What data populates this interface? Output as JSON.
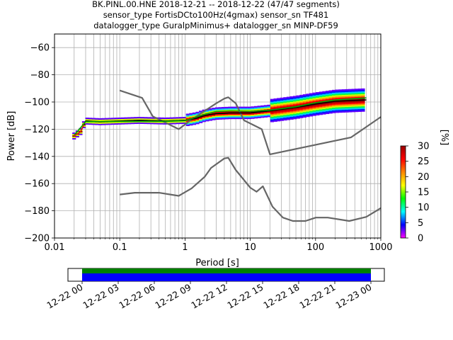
{
  "chart_data": {
    "type": "line",
    "title_lines": [
      "BK.PINL.00.HNE   2018-12-21 -- 2018-12-22  (47/47 segments)",
      "sensor_type FortisDCto100Hz(4gmax) sensor_sn TF481",
      "datalogger_type GuralpMinimus+ datalogger_sn MINP-DF59"
    ],
    "xlabel": "Period [s]",
    "ylabel": "Power [dB]",
    "xscale": "log",
    "xlim": [
      0.01,
      1000
    ],
    "ylim": [
      -200,
      -50
    ],
    "grid": true,
    "x_ticks": [
      {
        "value": 0.01,
        "label": "0.01"
      },
      {
        "value": 0.1,
        "label": "0.1"
      },
      {
        "value": 1,
        "label": "1"
      },
      {
        "value": 10,
        "label": "10"
      },
      {
        "value": 100,
        "label": "100"
      },
      {
        "value": 1000,
        "label": "1000"
      }
    ],
    "y_ticks": [
      -60,
      -80,
      -100,
      -120,
      -140,
      -160,
      -180,
      -200
    ],
    "colors": {
      "noise_model": "#666666",
      "mean": "#00aa00",
      "mode": "#000000",
      "low_period_start": "#ff2200"
    },
    "series": [
      {
        "role": "noise_model_high",
        "values": [
          [
            0.1,
            -91.5
          ],
          [
            0.22,
            -97
          ],
          [
            0.32,
            -110.5
          ],
          [
            0.8,
            -120
          ],
          [
            1.25,
            -113
          ],
          [
            3.0,
            -101
          ],
          [
            4.0,
            -97.5
          ],
          [
            4.6,
            -96.5
          ],
          [
            6.0,
            -101
          ],
          [
            8.0,
            -113.5
          ],
          [
            15.0,
            -120
          ],
          [
            20.0,
            -138.5
          ],
          [
            350.0,
            -126
          ],
          [
            1000.0,
            -111
          ]
        ]
      },
      {
        "role": "noise_model_low",
        "values": [
          [
            0.1,
            -168
          ],
          [
            0.17,
            -166.7
          ],
          [
            0.4,
            -166.7
          ],
          [
            0.8,
            -169
          ],
          [
            1.26,
            -163.5
          ],
          [
            2.0,
            -155
          ],
          [
            2.5,
            -148.5
          ],
          [
            4.0,
            -141.5
          ],
          [
            4.6,
            -141
          ],
          [
            6.0,
            -150
          ],
          [
            10.0,
            -163
          ],
          [
            12.5,
            -166
          ],
          [
            15.6,
            -162
          ],
          [
            21.9,
            -177
          ],
          [
            31.6,
            -185
          ],
          [
            45.0,
            -187.5
          ],
          [
            70.0,
            -187.5
          ],
          [
            101.0,
            -185
          ],
          [
            154.0,
            -185
          ],
          [
            328.0,
            -187.5
          ],
          [
            600.0,
            -184.5
          ],
          [
            1000.0,
            -178
          ]
        ]
      },
      {
        "role": "mode",
        "values": [
          [
            0.02,
            -125
          ],
          [
            0.025,
            -122
          ],
          [
            0.028,
            -117
          ],
          [
            0.03,
            -114
          ],
          [
            0.05,
            -114.5
          ],
          [
            0.1,
            -114
          ],
          [
            0.2,
            -113.5
          ],
          [
            0.5,
            -114
          ],
          [
            1.0,
            -113.5
          ],
          [
            1.5,
            -112
          ],
          [
            2.0,
            -110
          ],
          [
            3.0,
            -108.5
          ],
          [
            5.0,
            -108
          ],
          [
            10.0,
            -108
          ],
          [
            20.0,
            -106.5
          ],
          [
            50.0,
            -104
          ],
          [
            100.0,
            -101.5
          ],
          [
            200.0,
            -99.5
          ],
          [
            600.0,
            -98.5
          ]
        ]
      },
      {
        "role": "mean",
        "values": [
          [
            0.02,
            -124.5
          ],
          [
            0.03,
            -114.5
          ],
          [
            0.1,
            -114.3
          ],
          [
            0.5,
            -114.2
          ],
          [
            1.0,
            -113.8
          ],
          [
            2.0,
            -109
          ],
          [
            3.0,
            -107
          ],
          [
            5.0,
            -106.5
          ],
          [
            10.0,
            -106.8
          ],
          [
            20.0,
            -106
          ],
          [
            50.0,
            -103.5
          ],
          [
            100.0,
            -100.5
          ],
          [
            200.0,
            -98.5
          ],
          [
            600.0,
            -97
          ]
        ]
      }
    ],
    "colorbar": {
      "label": "[%]",
      "ticks": [
        0,
        5,
        10,
        15,
        20,
        25,
        30
      ],
      "stops": [
        "#ff00ff",
        "#0000ff",
        "#00ffff",
        "#00ff00",
        "#ffff00",
        "#ff8800",
        "#ff0000",
        "#990000"
      ]
    },
    "coverage": {
      "ticks": [
        "12-22 00",
        "12-22 03",
        "12-22 06",
        "12-22 09",
        "12-22 12",
        "12-22 15",
        "12-22 18",
        "12-22 21",
        "12-23 00"
      ],
      "data_color": "#0000ff",
      "processed_color": "#008000"
    }
  }
}
